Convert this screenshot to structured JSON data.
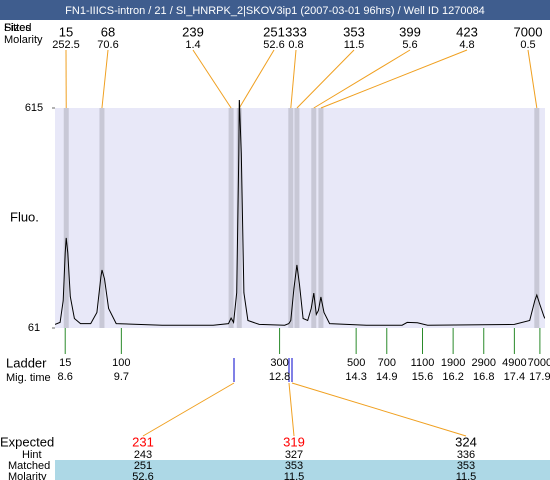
{
  "title": "FN1-IIICS-intron / 21 / SI_HNRPK_2|SKOV3ip1 (2007-03-01 96hrs) / Well ID 1270084",
  "labels": {
    "sizes": "Sizes",
    "fitted": "Fitted",
    "molarity": "Molarity",
    "ladder": "Ladder",
    "mig_time": "Mig. time",
    "expected": "Expected",
    "hint": "Hint",
    "matched": "Matched",
    "matched_molarity": "Molarity"
  },
  "chart_data": {
    "type": "line",
    "y_label": "Fluo.",
    "color": "#000000",
    "xlim": [
      8.4,
      18.0
    ],
    "ylim": [
      61,
      615
    ],
    "yticks": [
      61,
      615
    ],
    "x": [
      8.4,
      8.5,
      8.56,
      8.6,
      8.62,
      8.65,
      8.7,
      8.78,
      8.9,
      9.1,
      9.22,
      9.3,
      9.32,
      9.37,
      9.45,
      9.6,
      10.5,
      11.5,
      11.8,
      11.85,
      11.9,
      11.96,
      12.0,
      12.01,
      12.05,
      12.1,
      12.18,
      12.4,
      12.9,
      12.98,
      13.02,
      13.08,
      13.14,
      13.19,
      13.26,
      13.35,
      13.42,
      13.47,
      13.52,
      13.56,
      13.61,
      13.67,
      13.78,
      14.5,
      15.2,
      15.3,
      15.5,
      15.7,
      17.4,
      17.7,
      17.8,
      17.84,
      17.9,
      17.98,
      18.0
    ],
    "values": [
      70,
      75,
      130,
      250,
      288,
      250,
      140,
      85,
      72,
      72,
      100,
      190,
      207,
      185,
      110,
      72,
      68,
      68,
      72,
      86,
      75,
      150,
      500,
      640,
      500,
      150,
      80,
      70,
      68,
      72,
      80,
      160,
      220,
      170,
      85,
      80,
      110,
      149,
      95,
      105,
      139,
      100,
      72,
      68,
      68,
      75,
      74,
      68,
      70,
      80,
      130,
      144,
      120,
      90,
      85
    ]
  },
  "peaks": [
    {
      "size": 15,
      "molarity": 252.5,
      "mig_time": 8.62
    },
    {
      "size": 68,
      "molarity": 70.6,
      "mig_time": 9.32
    },
    {
      "size": 239,
      "molarity": 1.4,
      "mig_time": 11.85
    },
    {
      "size": 251,
      "molarity": 52.6,
      "mig_time": 12.01
    },
    {
      "size": 333,
      "molarity": 0.8,
      "mig_time": 13.02
    },
    {
      "size": 353,
      "molarity": 11.5,
      "mig_time": 13.14
    },
    {
      "size": 399,
      "molarity": 5.6,
      "mig_time": 13.47
    },
    {
      "size": 423,
      "molarity": 4.8,
      "mig_time": 13.61
    },
    {
      "size": 7000,
      "molarity": 0.5,
      "mig_time": 17.84
    }
  ],
  "ladder": {
    "sizes": [
      15,
      100,
      300,
      500,
      700,
      1100,
      1900,
      2900,
      4900,
      7000
    ],
    "mig_times": [
      8.6,
      9.7,
      12.8,
      14.3,
      14.9,
      15.6,
      16.2,
      16.8,
      17.4,
      17.9
    ]
  },
  "expected": [
    {
      "size": 231,
      "hint": 243,
      "matched": 251,
      "molarity": 52.6,
      "color": "#ff0000"
    },
    {
      "size": 319,
      "hint": 327,
      "matched": 353,
      "molarity": 11.5,
      "color": "#ff0000"
    },
    {
      "size": 324,
      "hint": 336,
      "matched": 353,
      "molarity": 11.5,
      "color": "#000000"
    }
  ]
}
